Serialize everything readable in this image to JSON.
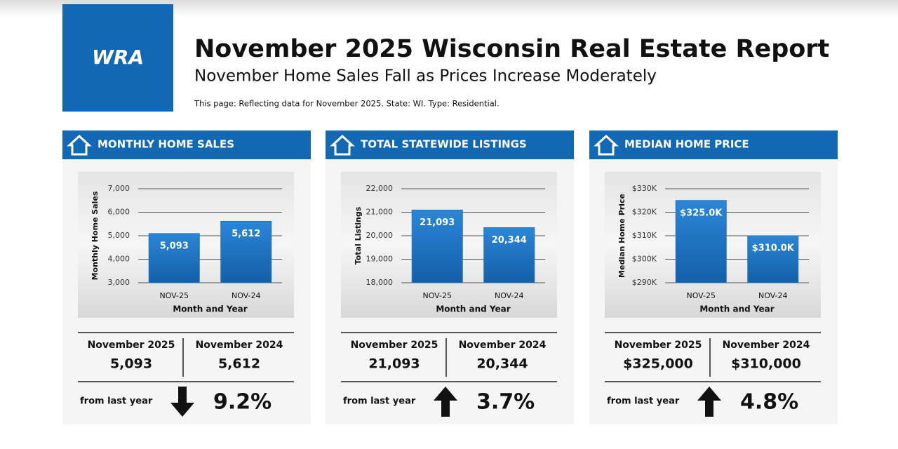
{
  "header": {
    "logo": "WRA",
    "title": "November 2025 Wisconsin Real Estate Report",
    "subtitle": "November Home Sales Fall as Prices Increase Moderately",
    "note": "This page: Reflecting data for November 2025. State: WI. Type: Residential."
  },
  "panels": [
    {
      "heading": "MONTHLY HOME SALES",
      "current_label": "November 2025",
      "current_value": "5,093",
      "previous_label": "November 2024",
      "previous_value": "5,612",
      "change_label": "from last year",
      "direction": "down",
      "change": "9.2%"
    },
    {
      "heading": "TOTAL STATEWIDE LISTINGS",
      "current_label": "November 2025",
      "current_value": "21,093",
      "previous_label": "November 2024",
      "previous_value": "20,344",
      "change_label": "from last year",
      "direction": "up",
      "change": "3.7%"
    },
    {
      "heading": "MEDIAN HOME PRICE",
      "current_label": "November 2025",
      "current_value": "$325,000",
      "previous_label": "November 2024",
      "previous_value": "$310,000",
      "change_label": "from last year",
      "direction": "up",
      "change": "4.8%"
    }
  ],
  "chart_data": [
    {
      "type": "bar",
      "ylabel": "Monthly Home Sales",
      "xlabel": "Month and Year",
      "categories": [
        "NOV-25",
        "NOV-24"
      ],
      "values": [
        5093,
        5612
      ],
      "value_labels": [
        "5,093",
        "5,612"
      ],
      "color": "#1e74c0",
      "ylim": [
        3000,
        7000
      ],
      "yticks": [
        {
          "value": 3000,
          "label": "3,000"
        },
        {
          "value": 4000,
          "label": "4,000"
        },
        {
          "value": 5000,
          "label": "5,000"
        },
        {
          "value": 6000,
          "label": "6,000"
        },
        {
          "value": 7000,
          "label": "7,000"
        }
      ],
      "grid": true
    },
    {
      "type": "bar",
      "ylabel": "Total Listings",
      "xlabel": "Month and Year",
      "categories": [
        "NOV-25",
        "NOV-24"
      ],
      "values": [
        21093,
        20344
      ],
      "value_labels": [
        "21,093",
        "20,344"
      ],
      "color": "#1e74c0",
      "ylim": [
        18000,
        22000
      ],
      "yticks": [
        {
          "value": 18000,
          "label": "18,000"
        },
        {
          "value": 19000,
          "label": "19,000"
        },
        {
          "value": 20000,
          "label": "20,000"
        },
        {
          "value": 21000,
          "label": "21,000"
        },
        {
          "value": 22000,
          "label": "22,000"
        }
      ],
      "grid": true
    },
    {
      "type": "bar",
      "ylabel": "Median Home Price",
      "xlabel": "Month and Year",
      "categories": [
        "NOV-25",
        "NOV-24"
      ],
      "values": [
        325000,
        310000
      ],
      "value_labels": [
        "$325.0K",
        "$310.0K"
      ],
      "color": "#1e74c0",
      "ylim": [
        290000,
        330000
      ],
      "yticks": [
        {
          "value": 290000,
          "label": "$290K"
        },
        {
          "value": 300000,
          "label": "$300K"
        },
        {
          "value": 310000,
          "label": "$310K"
        },
        {
          "value": 320000,
          "label": "$320K"
        },
        {
          "value": 330000,
          "label": "$330K"
        }
      ],
      "grid": true
    }
  ]
}
